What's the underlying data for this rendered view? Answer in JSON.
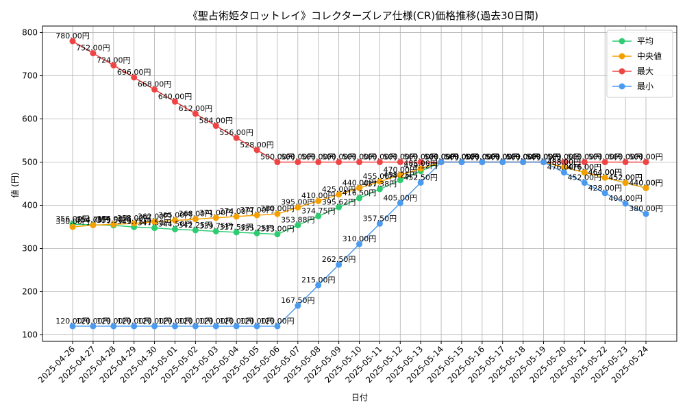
{
  "chart_data": {
    "type": "line",
    "title": "《聖占術姫タロットレイ》コレクターズレア仕様(CR)価格推移(過去30日間)",
    "xlabel": "日付",
    "ylabel": "値 (円)",
    "ylim": [
      85,
      815
    ],
    "yticks": [
      100,
      200,
      300,
      400,
      500,
      600,
      700,
      800
    ],
    "grid": true,
    "legend_position": "top-right",
    "label_suffix": "円",
    "categories": [
      "2025-04-26",
      "2025-04-27",
      "2025-04-28",
      "2025-04-29",
      "2025-04-30",
      "2025-05-01",
      "2025-05-02",
      "2025-05-03",
      "2025-05-04",
      "2025-05-05",
      "2025-05-06",
      "2025-05-07",
      "2025-05-08",
      "2025-05-09",
      "2025-05-10",
      "2025-05-11",
      "2025-05-12",
      "2025-05-13",
      "2025-05-14",
      "2025-05-15",
      "2025-05-16",
      "2025-05-17",
      "2025-05-18",
      "2025-05-19",
      "2025-05-20",
      "2025-05-21",
      "2025-05-22",
      "2025-05-23",
      "2025-05-24"
    ],
    "series": [
      {
        "name": "平均",
        "color": "#2ecc71",
        "values": [
          356.0,
          354.75,
          353.5,
          349.75,
          347.5,
          344.5,
          342.25,
          339.75,
          337.5,
          335.25,
          333.0,
          353.88,
          374.75,
          395.62,
          416.5,
          437.38,
          458.25,
          479.12,
          500.0,
          500.0,
          500.0,
          500.0,
          500.0,
          500.0,
          488.0,
          476.0,
          464.0,
          452.0,
          440.0
        ]
      },
      {
        "name": "中央値",
        "color": "#f5a000",
        "values": [
          350.0,
          354.0,
          356.0,
          358.0,
          362.0,
          365.0,
          368.0,
          371.0,
          374.0,
          377.0,
          380.0,
          395.0,
          410.0,
          425.0,
          440.0,
          455.0,
          470.0,
          485.0,
          500.0,
          500.0,
          500.0,
          500.0,
          500.0,
          500.0,
          488.0,
          476.0,
          464.0,
          452.0,
          440.0
        ]
      },
      {
        "name": "最大",
        "color": "#ef4444",
        "values": [
          780.0,
          752.0,
          724.0,
          696.0,
          668.0,
          640.0,
          612.0,
          584.0,
          556.0,
          528.0,
          500.0,
          500.0,
          500.0,
          500.0,
          500.0,
          500.0,
          500.0,
          500.0,
          500.0,
          500.0,
          500.0,
          500.0,
          500.0,
          500.0,
          500.0,
          500.0,
          500.0,
          500.0,
          500.0
        ]
      },
      {
        "name": "最小",
        "color": "#4a9af0",
        "values": [
          120.0,
          120.0,
          120.0,
          120.0,
          120.0,
          120.0,
          120.0,
          120.0,
          120.0,
          120.0,
          120.0,
          167.5,
          215.0,
          262.5,
          310.0,
          357.5,
          405.0,
          452.5,
          500.0,
          500.0,
          500.0,
          500.0,
          500.0,
          500.0,
          476.0,
          452.0,
          428.0,
          404.0,
          380.0
        ]
      }
    ]
  }
}
